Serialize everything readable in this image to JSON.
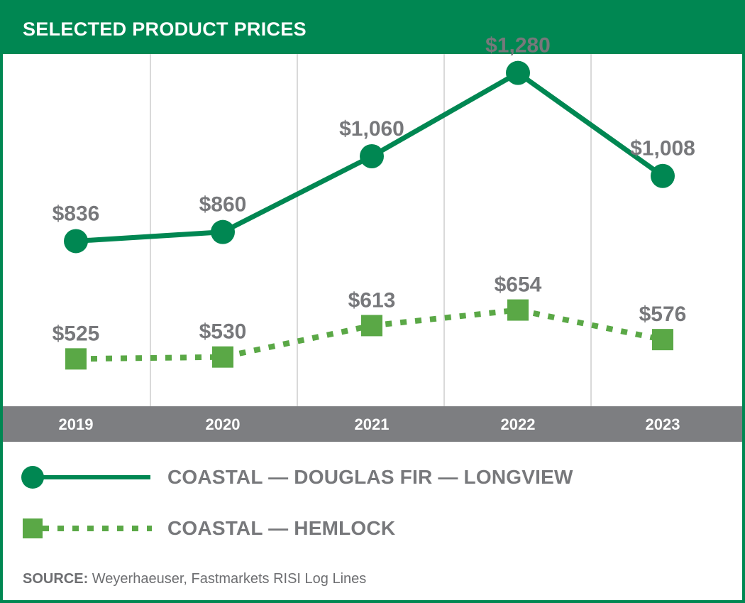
{
  "title": "SELECTED PRODUCT PRICES",
  "colors": {
    "brand_green": "#008752",
    "hemlock_green": "#5aa846",
    "label_gray": "#77787b",
    "axis_band": "#7d7e81",
    "grid": "#d9d9d9"
  },
  "chart_data": {
    "type": "line",
    "title": "SELECTED PRODUCT PRICES",
    "categories": [
      "2019",
      "2020",
      "2021",
      "2022",
      "2023"
    ],
    "ylabel": "",
    "xlabel": "",
    "ylim": [
      400,
      1330
    ],
    "grid": true,
    "legend_position": "bottom",
    "series": [
      {
        "name": "COASTAL — DOUGLAS FIR — LONGVIEW",
        "values": [
          836,
          860,
          1060,
          1280,
          1008
        ],
        "labels": [
          "$836",
          "$860",
          "$1,060",
          "$1,280",
          "$1,008"
        ],
        "marker": "circle",
        "line": "solid"
      },
      {
        "name": "COASTAL — HEMLOCK",
        "values": [
          525,
          530,
          613,
          654,
          576
        ],
        "labels": [
          "$525",
          "$530",
          "$613",
          "$654",
          "$576"
        ],
        "marker": "square",
        "line": "dotted"
      }
    ]
  },
  "legend": {
    "fir_label": "COASTAL — DOUGLAS FIR — LONGVIEW",
    "hemlock_label": "COASTAL — HEMLOCK"
  },
  "source": {
    "prefix": "SOURCE:",
    "text": " Weyerhaeuser, Fastmarkets RISI Log Lines"
  }
}
